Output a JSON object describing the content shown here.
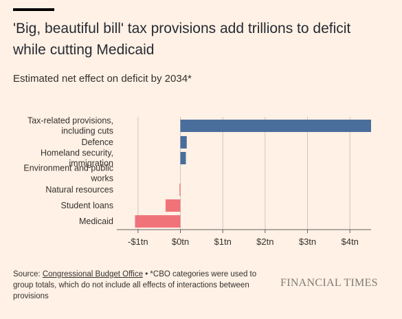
{
  "title": "'Big, beautiful bill' tax provisions add trillions to deficit while cutting Medicaid",
  "subtitle": "Estimated net effect on deficit by 2034*",
  "source": {
    "prefix": "Source: ",
    "link": "Congressional Budget Office",
    "note": " • *CBO categories were used to group totals, which do not include all effects of interactions between provisions"
  },
  "brand": "FINANCIAL TIMES",
  "colors": {
    "background": "#FFF1E5",
    "increase": "#4A6E9C",
    "decrease": "#F0737A",
    "grid": "#CEC6BE",
    "axis": "#66605C"
  },
  "chart_data": {
    "type": "bar",
    "orientation": "horizontal",
    "categories": [
      [
        "Tax-related provisions,",
        "including cuts"
      ],
      [
        "Defence"
      ],
      [
        "Homeland security,",
        "immigration"
      ],
      [
        "Environment and public",
        "works"
      ],
      [
        "Natural resources"
      ],
      [
        "Student loans"
      ],
      [
        "Medicaid"
      ]
    ],
    "values": [
      4.5,
      0.15,
      0.13,
      0.0,
      -0.02,
      -0.35,
      -1.07
    ],
    "xlim": [
      -1.5,
      4.5
    ],
    "xticks": [
      -1,
      0,
      1,
      2,
      3,
      4
    ],
    "xtick_labels": [
      "-$1tn",
      "$0tn",
      "$1tn",
      "$2tn",
      "$3tn",
      "$4tn"
    ],
    "grid": true,
    "legend": "none"
  }
}
